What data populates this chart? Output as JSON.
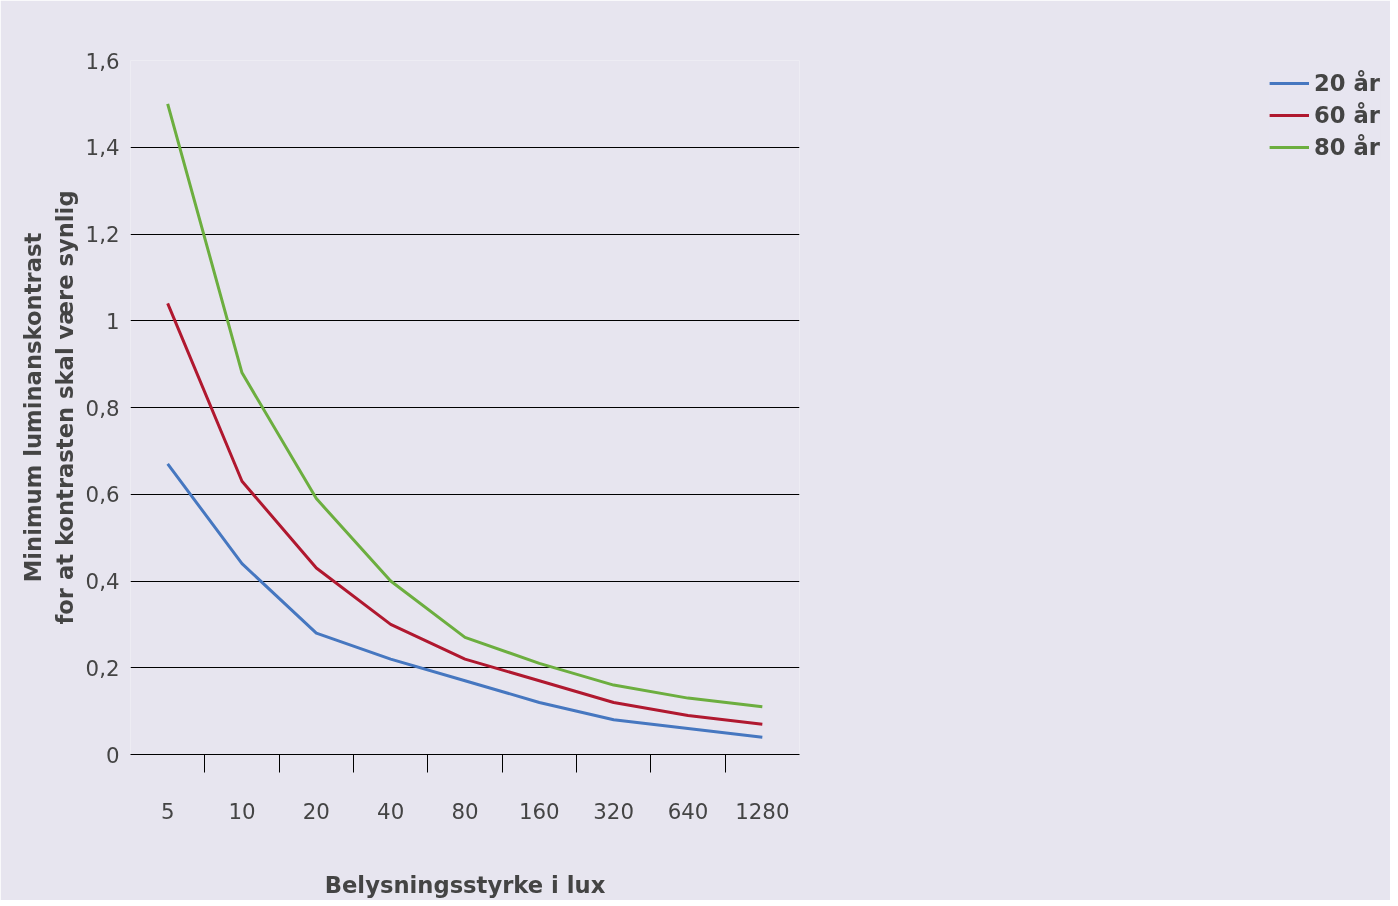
{
  "chart_data": {
    "type": "line",
    "xlabel": "Belysningsstyrke i lux",
    "ylabel": "Minimum luminanskontrast\nfor at kontrasten skal være synlig",
    "categories": [
      "5",
      "10",
      "20",
      "40",
      "80",
      "160",
      "320",
      "640",
      "1280"
    ],
    "ylim": [
      0,
      1.6
    ],
    "yticks": [
      0,
      {
        "value": 0.2,
        "label": "0,2"
      },
      {
        "value": 0.4,
        "label": "0,4"
      },
      {
        "value": 0.6,
        "label": "0,6"
      },
      {
        "value": 0.8,
        "label": "0,8"
      },
      1,
      {
        "value": 1.2,
        "label": "1,2"
      },
      {
        "value": 1.4,
        "label": "1,4"
      },
      {
        "value": 1.6,
        "label": "1,6"
      }
    ],
    "grid": "y",
    "legend": "top right",
    "marker": "none",
    "line_style": "solid",
    "series": [
      {
        "name": "20 år",
        "color": "#4677c0",
        "values": [
          0.67,
          0.44,
          0.28,
          0.22,
          0.17,
          0.12,
          0.08,
          0.06,
          0.04
        ]
      },
      {
        "name": "60 år",
        "color": "#b0182f",
        "values": [
          1.04,
          0.63,
          0.43,
          0.3,
          0.22,
          0.17,
          0.12,
          0.09,
          0.07
        ]
      },
      {
        "name": "80 år",
        "color": "#6cae3f",
        "values": [
          1.5,
          0.88,
          0.59,
          0.4,
          0.27,
          0.21,
          0.16,
          0.13,
          0.11
        ]
      }
    ]
  }
}
